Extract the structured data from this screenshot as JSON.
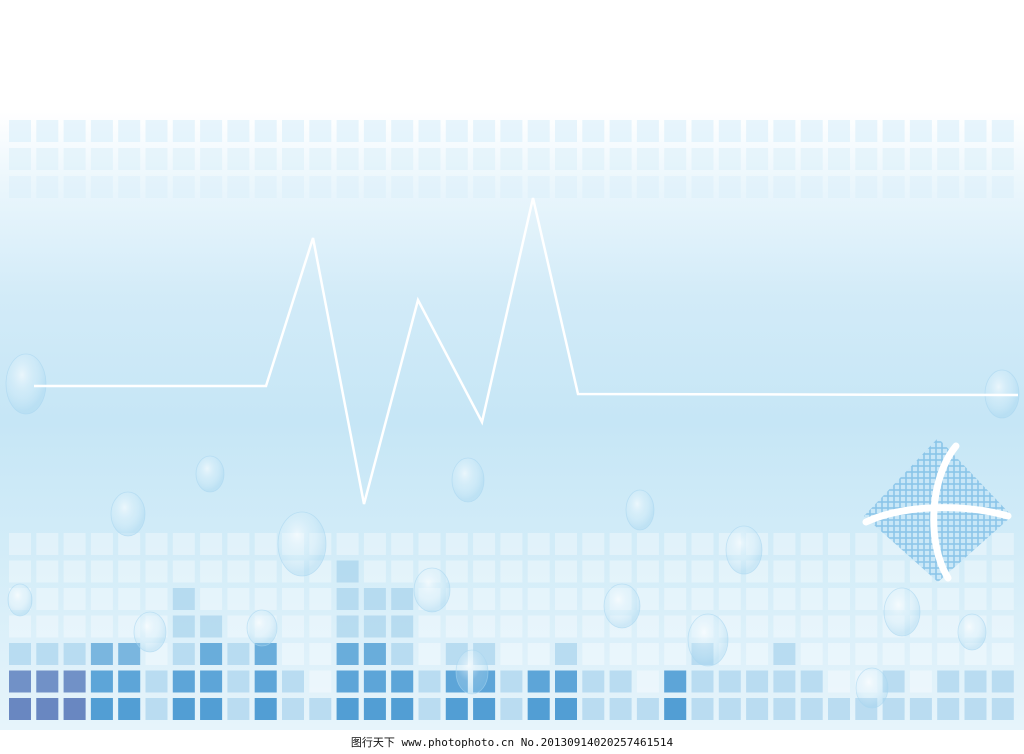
{
  "watermark": {
    "text": "图行天下 www.photophoto.cn No.20130914020257461514"
  },
  "colors": {
    "accent": "#3f8fc9",
    "deep": "#5a6fb0",
    "light": "#bfe2f4",
    "line": "#ffffff"
  },
  "icons": {
    "globe_diamond": "globe-diamond-icon",
    "heartbeat": "heartbeat-line"
  }
}
